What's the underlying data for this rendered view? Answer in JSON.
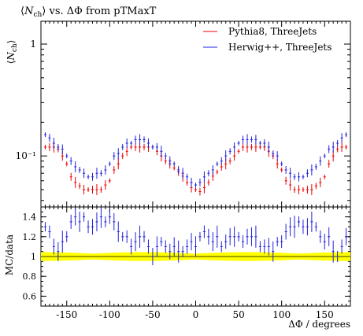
{
  "chart_data": [
    {
      "type": "scatter",
      "panel": "main",
      "title": "⟨N_ch⟩ vs. ΔΦ from pTMaxT",
      "title_parts": {
        "open": "⟨",
        "n": "N",
        "sub": "ch",
        "close": "⟩",
        "rest": " vs. ΔΦ from pTMaxT"
      },
      "ylabel": "⟨N_ch⟩",
      "ylabel_parts": {
        "open": "⟨",
        "n": "N",
        "sub": "ch",
        "close": "⟩"
      },
      "xlim": [
        -180,
        180
      ],
      "ylim": [
        0.035,
        1.6
      ],
      "yscale": "log",
      "ytick_labels": [
        "10⁻¹",
        "1"
      ],
      "ytick_values": [
        0.1,
        1
      ],
      "legend_placement": "top-right",
      "series": [
        {
          "name": "Pythia8, ThreeJets",
          "color": "#ee0000",
          "x": [
            -175,
            -170,
            -165,
            -160,
            -155,
            -150,
            -145,
            -140,
            -135,
            -130,
            -125,
            -120,
            -115,
            -110,
            -105,
            -100,
            -95,
            -90,
            -85,
            -80,
            -75,
            -70,
            -65,
            -60,
            -55,
            -50,
            -45,
            -40,
            -35,
            -30,
            -25,
            -20,
            -15,
            -10,
            -5,
            0,
            5,
            10,
            15,
            20,
            25,
            30,
            35,
            40,
            45,
            50,
            55,
            60,
            65,
            70,
            75,
            80,
            85,
            90,
            95,
            100,
            105,
            110,
            115,
            120,
            125,
            130,
            135,
            140,
            145,
            150,
            155,
            160,
            165,
            170,
            175
          ],
          "y": [
            0.12,
            0.12,
            0.12,
            0.115,
            0.1,
            0.085,
            0.065,
            0.058,
            0.054,
            0.05,
            0.05,
            0.05,
            0.05,
            0.05,
            0.055,
            0.06,
            0.075,
            0.085,
            0.1,
            0.11,
            0.12,
            0.12,
            0.12,
            0.12,
            0.12,
            0.12,
            0.11,
            0.1,
            0.09,
            0.085,
            0.078,
            0.072,
            0.066,
            0.058,
            0.052,
            0.05,
            0.048,
            0.052,
            0.058,
            0.066,
            0.072,
            0.08,
            0.085,
            0.09,
            0.1,
            0.11,
            0.12,
            0.12,
            0.12,
            0.12,
            0.12,
            0.12,
            0.11,
            0.1,
            0.085,
            0.075,
            0.06,
            0.055,
            0.05,
            0.05,
            0.05,
            0.05,
            0.05,
            0.054,
            0.058,
            0.065,
            0.085,
            0.1,
            0.115,
            0.12,
            0.12
          ]
        },
        {
          "name": "Herwig++, ThreeJets",
          "color": "#2222dd",
          "x": [
            -175,
            -170,
            -165,
            -160,
            -155,
            -150,
            -145,
            -140,
            -135,
            -130,
            -125,
            -120,
            -115,
            -110,
            -105,
            -100,
            -95,
            -90,
            -85,
            -80,
            -75,
            -70,
            -65,
            -60,
            -55,
            -50,
            -45,
            -40,
            -35,
            -30,
            -25,
            -20,
            -15,
            -10,
            -5,
            0,
            5,
            10,
            15,
            20,
            25,
            30,
            35,
            40,
            45,
            50,
            55,
            60,
            65,
            70,
            75,
            80,
            85,
            90,
            95,
            100,
            105,
            110,
            115,
            120,
            125,
            130,
            135,
            140,
            145,
            150,
            155,
            160,
            165,
            170,
            175
          ],
          "y": [
            0.155,
            0.145,
            0.13,
            0.12,
            0.115,
            0.1,
            0.09,
            0.08,
            0.075,
            0.07,
            0.065,
            0.065,
            0.07,
            0.07,
            0.075,
            0.085,
            0.1,
            0.105,
            0.12,
            0.13,
            0.13,
            0.14,
            0.14,
            0.14,
            0.13,
            0.12,
            0.12,
            0.11,
            0.1,
            0.09,
            0.085,
            0.075,
            0.07,
            0.065,
            0.058,
            0.055,
            0.058,
            0.065,
            0.07,
            0.075,
            0.085,
            0.09,
            0.1,
            0.11,
            0.12,
            0.13,
            0.14,
            0.14,
            0.14,
            0.14,
            0.13,
            0.13,
            0.12,
            0.105,
            0.1,
            0.085,
            0.075,
            0.07,
            0.065,
            0.065,
            0.065,
            0.07,
            0.075,
            0.08,
            0.09,
            0.1,
            0.115,
            0.12,
            0.13,
            0.145,
            0.155
          ]
        }
      ]
    },
    {
      "type": "scatter",
      "panel": "ratio",
      "ylabel": "MC/data",
      "xlabel": "ΔΦ / degrees",
      "xlim": [
        -180,
        180
      ],
      "ylim": [
        0.5,
        1.5
      ],
      "xtick_labels": [
        "-150",
        "-100",
        "-50",
        "0",
        "50",
        "100",
        "150"
      ],
      "xtick_values": [
        -150,
        -100,
        -50,
        0,
        50,
        100,
        150
      ],
      "ytick_labels": [
        "0.6",
        "0.8",
        "1",
        "1.2",
        "1.4"
      ],
      "ytick_values": [
        0.6,
        0.8,
        1.0,
        1.2,
        1.4
      ],
      "band_color": "#ffff00",
      "series": [
        {
          "name": "Pythia8, ThreeJets",
          "color": "#ee0000",
          "x": [
            -175,
            -165,
            -155,
            -145,
            -135,
            -125,
            -115,
            -105,
            -95,
            -85,
            -75,
            -65,
            -55,
            -45,
            -35,
            -25,
            -15,
            -5,
            5,
            15,
            25,
            35,
            45,
            55,
            65,
            75,
            85,
            95,
            105,
            115,
            125,
            135,
            145,
            155,
            165,
            175
          ],
          "y": [
            1.0,
            1.0,
            1.0,
            1.0,
            1.0,
            1.0,
            1.0,
            1.0,
            1.0,
            1.0,
            1.0,
            1.0,
            1.0,
            1.0,
            1.0,
            1.0,
            1.0,
            1.0,
            1.0,
            1.0,
            1.0,
            1.0,
            1.0,
            1.0,
            1.0,
            1.0,
            1.0,
            1.0,
            1.0,
            1.0,
            1.0,
            1.0,
            1.0,
            1.0,
            1.0,
            1.0
          ]
        },
        {
          "name": "Herwig++, ThreeJets",
          "color": "#2222dd",
          "x": [
            -175,
            -170,
            -165,
            -160,
            -155,
            -150,
            -145,
            -140,
            -135,
            -130,
            -125,
            -120,
            -115,
            -110,
            -105,
            -100,
            -95,
            -90,
            -85,
            -80,
            -75,
            -70,
            -65,
            -60,
            -55,
            -50,
            -45,
            -40,
            -35,
            -30,
            -25,
            -20,
            -15,
            -10,
            -5,
            0,
            5,
            10,
            15,
            20,
            25,
            30,
            35,
            40,
            45,
            50,
            55,
            60,
            65,
            70,
            75,
            80,
            85,
            90,
            95,
            100,
            105,
            110,
            115,
            120,
            125,
            130,
            135,
            140,
            145,
            150,
            155,
            160,
            165,
            170,
            175
          ],
          "y": [
            1.3,
            1.25,
            1.1,
            1.05,
            1.15,
            1.2,
            1.35,
            1.4,
            1.35,
            1.4,
            1.3,
            1.3,
            1.35,
            1.4,
            1.35,
            1.4,
            1.35,
            1.25,
            1.2,
            1.2,
            1.1,
            1.15,
            1.2,
            1.2,
            1.1,
            1.0,
            1.1,
            1.15,
            1.1,
            1.05,
            1.1,
            1.05,
            1.05,
            1.1,
            1.15,
            1.1,
            1.2,
            1.25,
            1.2,
            1.15,
            1.2,
            1.1,
            1.15,
            1.2,
            1.2,
            1.2,
            1.15,
            1.2,
            1.2,
            1.2,
            1.1,
            1.1,
            1.1,
            1.05,
            1.15,
            1.15,
            1.25,
            1.3,
            1.3,
            1.35,
            1.3,
            1.3,
            1.35,
            1.3,
            1.2,
            1.15,
            1.2,
            1.05,
            1.0,
            1.1,
            1.2
          ]
        }
      ]
    }
  ],
  "legend": {
    "entries": [
      "Pythia8, ThreeJets",
      "Herwig++, ThreeJets"
    ]
  }
}
